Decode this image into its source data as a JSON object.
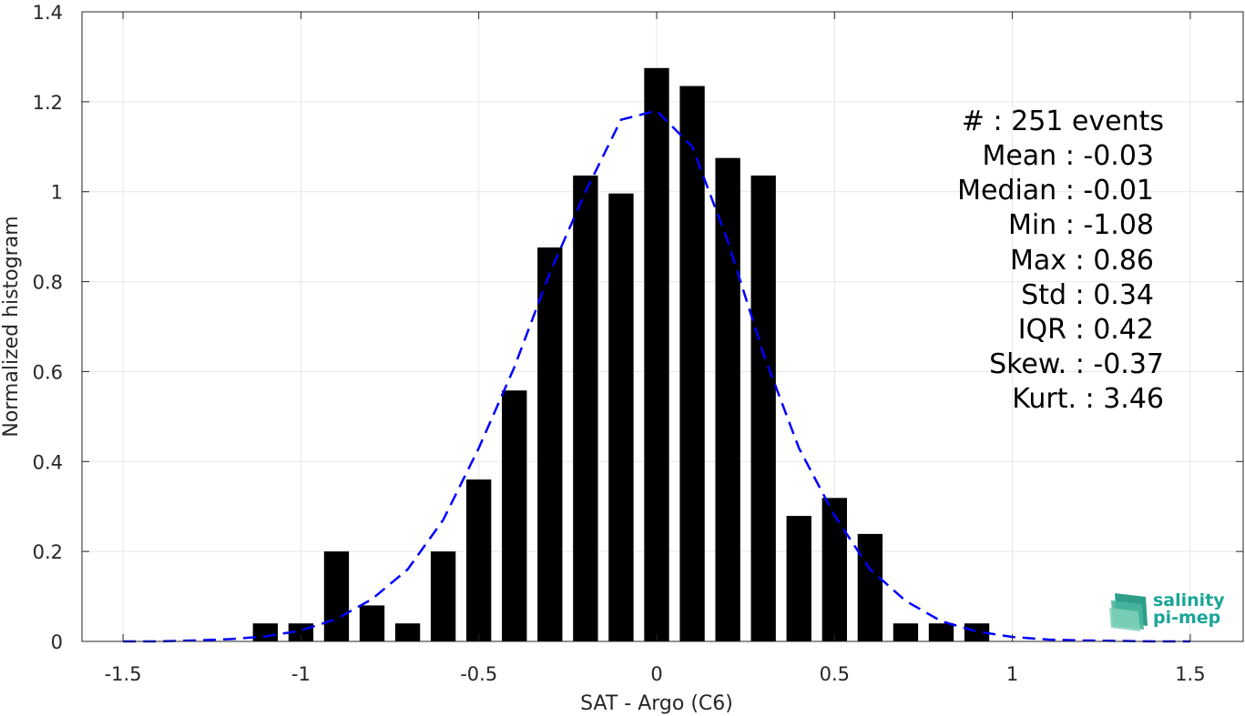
{
  "chart_data": {
    "type": "bar",
    "xlabel": "SAT - Argo (C6)",
    "ylabel": "Normalized histogram",
    "xlim": [
      -1.5,
      1.5
    ],
    "ylim": [
      0,
      1.4
    ],
    "xticks": [
      -1.5,
      -1,
      -0.5,
      0,
      0.5,
      1,
      1.5
    ],
    "xtick_labels": [
      "-1.5",
      "-1",
      "-0.5",
      "0",
      "0.5",
      "1",
      "1.5"
    ],
    "yticks": [
      0,
      0.2,
      0.4,
      0.6,
      0.8,
      1,
      1.2,
      1.4
    ],
    "ytick_labels": [
      "0",
      "0.2",
      "0.4",
      "0.6",
      "0.8",
      "1",
      "1.2",
      "1.4"
    ],
    "grid": true,
    "bar_width": 0.07,
    "bar_color": "#000000",
    "bars": {
      "x": [
        -1.1,
        -1.0,
        -0.9,
        -0.8,
        -0.7,
        -0.6,
        -0.5,
        -0.4,
        -0.3,
        -0.2,
        -0.1,
        0.0,
        0.1,
        0.2,
        0.3,
        0.4,
        0.5,
        0.6,
        0.7,
        0.8,
        0.9
      ],
      "values": [
        0.04,
        0.04,
        0.2,
        0.08,
        0.04,
        0.2,
        0.36,
        0.558,
        0.876,
        1.036,
        0.996,
        1.275,
        1.235,
        1.075,
        1.036,
        0.279,
        0.319,
        0.239,
        0.04,
        0.04,
        0.04
      ]
    },
    "fit_curve": {
      "color": "#0000ff",
      "style": "dashed",
      "x": [
        -1.5,
        -1.4,
        -1.3,
        -1.2,
        -1.1,
        -1.0,
        -0.9,
        -0.8,
        -0.7,
        -0.6,
        -0.5,
        -0.4,
        -0.3,
        -0.2,
        -0.1,
        0.0,
        0.1,
        0.2,
        0.3,
        0.4,
        0.5,
        0.6,
        0.7,
        0.8,
        0.9,
        1.0,
        1.1,
        1.2,
        1.3,
        1.4,
        1.5
      ],
      "y": [
        0.0,
        0.0,
        0.002,
        0.005,
        0.011,
        0.024,
        0.05,
        0.094,
        0.16,
        0.27,
        0.43,
        0.61,
        0.82,
        1.0,
        1.16,
        1.18,
        1.1,
        0.89,
        0.64,
        0.43,
        0.28,
        0.16,
        0.09,
        0.045,
        0.022,
        0.01,
        0.004,
        0.002,
        0.001,
        0.0,
        0.0
      ]
    },
    "stats": [
      "#  : 251 events",
      "Mean : -0.03",
      "Median : -0.01",
      "Min : -1.08",
      "Max : 0.86",
      "Std : 0.34",
      "IQR : 0.42",
      "Skew. : -0.37",
      "Kurt. : 3.46"
    ]
  },
  "logo": {
    "line1": "salinity",
    "line2": "pi-mep",
    "color": "#1aa597"
  }
}
